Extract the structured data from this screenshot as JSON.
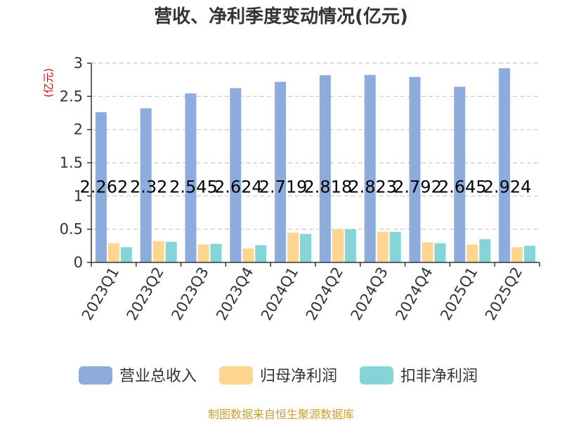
{
  "chart_data": {
    "type": "bar",
    "title": "营收、净利季度变动情况(亿元)",
    "unit_label": "(亿元)",
    "categories": [
      "2023Q1",
      "2023Q2",
      "2023Q3",
      "2023Q4",
      "2024Q1",
      "2024Q2",
      "2024Q3",
      "2024Q4",
      "2025Q1",
      "2025Q2"
    ],
    "series": [
      {
        "name": "营业总收入",
        "color": "#8eacdb",
        "values": [
          2.262,
          2.32,
          2.545,
          2.624,
          2.719,
          2.818,
          2.823,
          2.792,
          2.645,
          2.924
        ],
        "labels": [
          "2.262",
          "2.32",
          "2.545",
          "2.624",
          "2.719",
          "2.818",
          "2.823",
          "2.792",
          "2.645",
          "2.924"
        ]
      },
      {
        "name": "归母净利润",
        "color": "#ffd591",
        "values": [
          0.29,
          0.32,
          0.27,
          0.21,
          0.45,
          0.5,
          0.46,
          0.3,
          0.27,
          0.23
        ]
      },
      {
        "name": "扣非净利润",
        "color": "#85d5d8",
        "values": [
          0.23,
          0.31,
          0.28,
          0.26,
          0.43,
          0.5,
          0.46,
          0.29,
          0.35,
          0.25
        ]
      }
    ],
    "ylim": [
      0,
      3
    ],
    "yticks": [
      "0",
      "0.5",
      "1",
      "1.5",
      "2",
      "2.5",
      "3"
    ],
    "grid": true,
    "legend_position": "bottom"
  },
  "source_text": "制图数据来自恒生聚源数据库"
}
